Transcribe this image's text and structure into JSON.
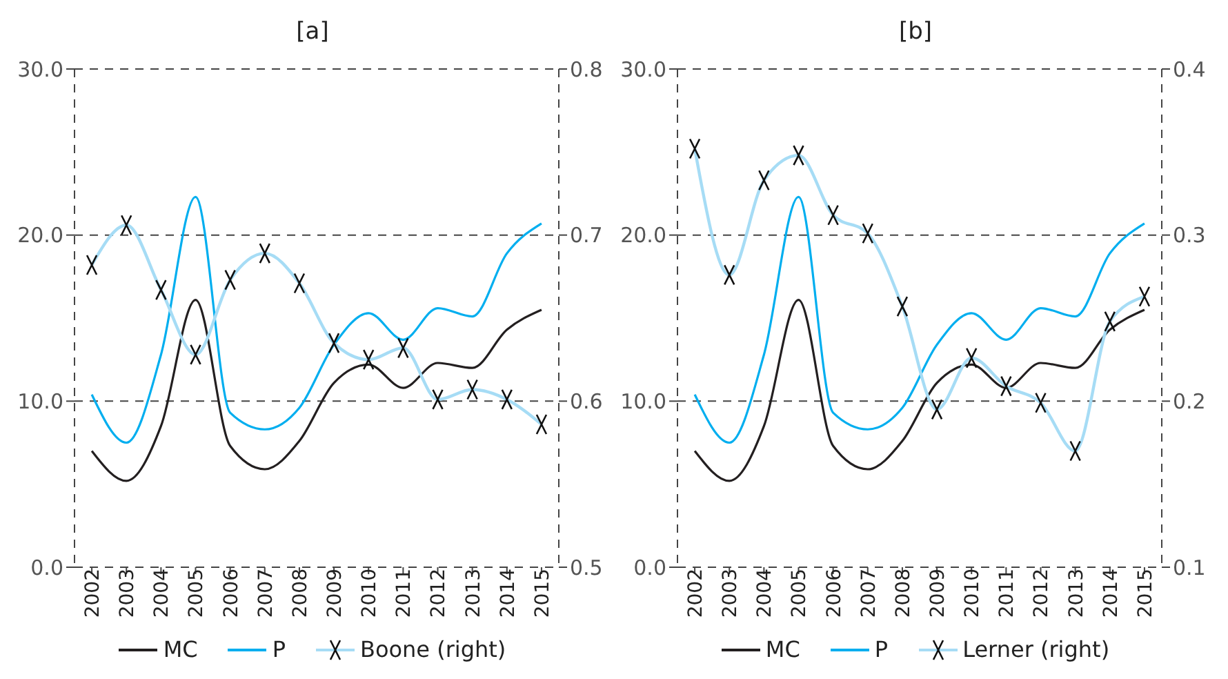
{
  "chart_data": [
    {
      "type": "line",
      "title": "[a]",
      "categories": [
        "2002",
        "2003",
        "2004",
        "2005",
        "2006",
        "2007",
        "2008",
        "2009",
        "2010",
        "2011",
        "2012",
        "2013",
        "2014",
        "2015"
      ],
      "series": [
        {
          "name": "MC",
          "color": "#231f20",
          "marker": "none",
          "values": [
            7.0,
            5.2,
            8.5,
            16.1,
            7.3,
            5.9,
            7.6,
            11.1,
            12.2,
            10.8,
            12.3,
            12.0,
            14.3,
            15.5
          ]
        },
        {
          "name": "P",
          "color": "#00aeef",
          "marker": "none",
          "values": [
            10.4,
            7.5,
            12.8,
            22.3,
            9.3,
            8.3,
            9.6,
            13.4,
            15.3,
            13.7,
            15.6,
            15.1,
            18.9,
            20.7
          ]
        },
        {
          "name": "Boone (right)",
          "color": "#a6dcf5",
          "marker": "cross",
          "axis": "y2",
          "values": [
            0.682,
            0.706,
            0.667,
            0.628,
            0.673,
            0.689,
            0.671,
            0.635,
            0.625,
            0.632,
            0.601,
            0.607,
            0.601,
            0.586
          ]
        }
      ],
      "ylim": [
        0,
        30
      ],
      "yticks": [
        {
          "value": 0,
          "label": "0.0"
        },
        {
          "value": 10,
          "label": "10.0"
        },
        {
          "value": 20,
          "label": "20.0"
        },
        {
          "value": 30,
          "label": "30.0"
        }
      ],
      "y2lim": [
        0.5,
        0.8
      ],
      "y2ticks": [
        0.5,
        0.6,
        0.7,
        0.8
      ],
      "grid": "y",
      "legend": "bottom",
      "line_style": "solid"
    },
    {
      "type": "line",
      "title": "[b]",
      "categories": [
        "2002",
        "2003",
        "2004",
        "2005",
        "2006",
        "2007",
        "2008",
        "2009",
        "2010",
        "2011",
        "2012",
        "2013",
        "2014",
        "2015"
      ],
      "series": [
        {
          "name": "MC",
          "color": "#231f20",
          "marker": "none",
          "values": [
            7.0,
            5.2,
            8.5,
            16.1,
            7.3,
            5.9,
            7.6,
            11.1,
            12.2,
            10.8,
            12.3,
            12.0,
            14.3,
            15.5
          ]
        },
        {
          "name": "P",
          "color": "#00aeef",
          "marker": "none",
          "values": [
            10.4,
            7.5,
            12.8,
            22.3,
            9.3,
            8.3,
            9.6,
            13.4,
            15.3,
            13.7,
            15.6,
            15.1,
            18.9,
            20.7
          ]
        },
        {
          "name": "Lerner (right)",
          "color": "#a6dcf5",
          "marker": "cross",
          "axis": "y2",
          "values": [
            0.352,
            0.276,
            0.333,
            0.348,
            0.312,
            0.301,
            0.257,
            0.195,
            0.226,
            0.209,
            0.199,
            0.17,
            0.248,
            0.263
          ]
        }
      ],
      "ylim": [
        0,
        30
      ],
      "yticks": [
        {
          "value": 0,
          "label": "0.0"
        },
        {
          "value": 10,
          "label": "10.0"
        },
        {
          "value": 20,
          "label": "20.0"
        },
        {
          "value": 30,
          "label": "30.0"
        }
      ],
      "y2lim": [
        0.1,
        0.4
      ],
      "y2ticks": [
        0.1,
        0.2,
        0.3,
        0.4
      ],
      "grid": "y",
      "legend": "bottom",
      "line_style": "solid"
    }
  ]
}
